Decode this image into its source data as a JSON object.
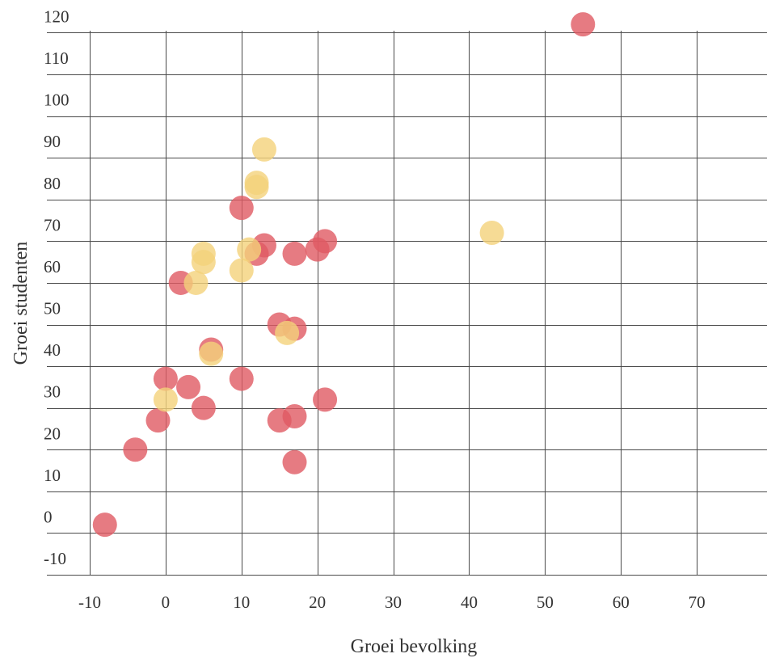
{
  "chart_data": {
    "type": "scatter",
    "xlabel": "Groei bevolking",
    "ylabel": "Groei studenten",
    "xlim": [
      -10,
      80
    ],
    "ylim": [
      -13,
      120
    ],
    "x_ticks": [
      -10,
      0,
      10,
      20,
      30,
      40,
      50,
      60,
      70
    ],
    "y_ticks": [
      -10,
      0,
      10,
      20,
      30,
      40,
      50,
      60,
      70,
      80,
      90,
      100,
      110,
      120
    ],
    "x_tick_labels": [
      "-10",
      "0",
      "10",
      "20",
      "30",
      "40",
      "50",
      "60",
      "70"
    ],
    "y_tick_labels": [
      "-10",
      "0",
      "10",
      "20",
      "30",
      "40",
      "50",
      "60",
      "70",
      "80",
      "90",
      "100",
      "110",
      "120"
    ],
    "grid": true,
    "legend": "none",
    "series": [
      {
        "color": "#e05a63",
        "points": [
          {
            "x": 55,
            "y": 122
          },
          {
            "x": 10,
            "y": 78
          },
          {
            "x": 21,
            "y": 70
          },
          {
            "x": 13,
            "y": 69
          },
          {
            "x": 20,
            "y": 68
          },
          {
            "x": 12,
            "y": 67
          },
          {
            "x": 17,
            "y": 67
          },
          {
            "x": 2,
            "y": 60
          },
          {
            "x": 15,
            "y": 50
          },
          {
            "x": 17,
            "y": 49
          },
          {
            "x": 6,
            "y": 44
          },
          {
            "x": 0,
            "y": 37
          },
          {
            "x": 10,
            "y": 37
          },
          {
            "x": 3,
            "y": 35
          },
          {
            "x": 21,
            "y": 32
          },
          {
            "x": 5,
            "y": 30
          },
          {
            "x": 17,
            "y": 28
          },
          {
            "x": 15,
            "y": 27
          },
          {
            "x": -1,
            "y": 27
          },
          {
            "x": -4,
            "y": 20
          },
          {
            "x": 17,
            "y": 17
          },
          {
            "x": -8,
            "y": 2
          }
        ]
      },
      {
        "color": "#f4d27a",
        "points": [
          {
            "x": 13,
            "y": 92
          },
          {
            "x": 12,
            "y": 84
          },
          {
            "x": 12,
            "y": 83
          },
          {
            "x": 43,
            "y": 72
          },
          {
            "x": 11,
            "y": 68
          },
          {
            "x": 5,
            "y": 67
          },
          {
            "x": 5,
            "y": 65
          },
          {
            "x": 10,
            "y": 63
          },
          {
            "x": 4,
            "y": 60
          },
          {
            "x": 16,
            "y": 48
          },
          {
            "x": 6,
            "y": 43
          },
          {
            "x": 0,
            "y": 32
          }
        ]
      }
    ]
  }
}
